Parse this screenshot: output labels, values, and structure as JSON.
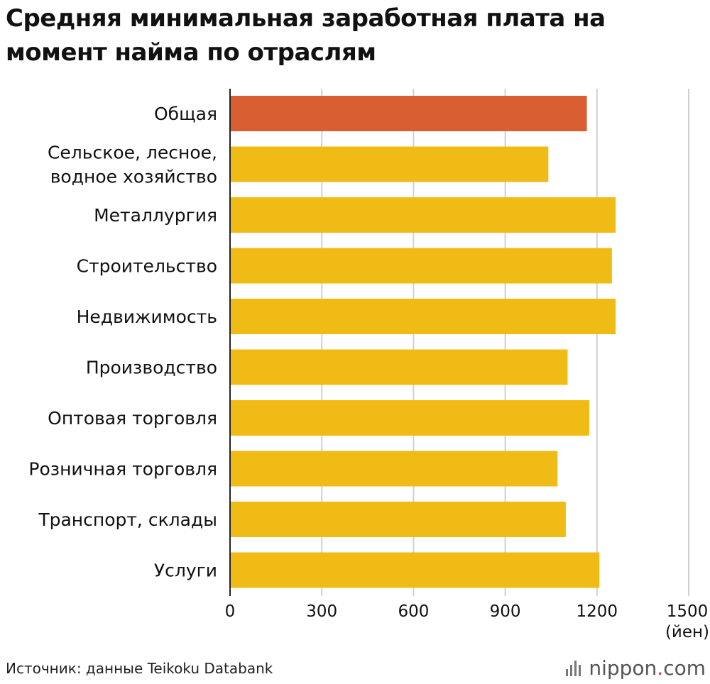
{
  "chart_data": {
    "type": "bar",
    "orientation": "horizontal",
    "title": "Средняя минимальная заработная плата на момент найма по отраслям",
    "categories": [
      "Общая",
      "Сельское, лесное, водное хозяйство",
      "Металлургия",
      "Строительство",
      "Недвижимость",
      "Производство",
      "Оптовая торговля",
      "Розничная торговля",
      "Транспорт, склады",
      "Услуги"
    ],
    "category_lines": [
      [
        "Общая"
      ],
      [
        "Сельское, лесное,",
        "водное хозяйство"
      ],
      [
        "Металлургия"
      ],
      [
        "Строительство"
      ],
      [
        "Недвижимость"
      ],
      [
        "Производство"
      ],
      [
        "Оптовая торговля"
      ],
      [
        "Розничная торговля"
      ],
      [
        "Транспорт, склады"
      ],
      [
        "Услуги"
      ]
    ],
    "values": [
      1167,
      1041,
      1261,
      1249,
      1261,
      1104,
      1175,
      1071,
      1098,
      1208
    ],
    "highlight_index": 0,
    "xlim": [
      0,
      1500
    ],
    "xticks": [
      0,
      300,
      600,
      900,
      1200,
      1500
    ],
    "xunit": "(йен)",
    "grid": true,
    "colors": {
      "highlight": "#d95f33",
      "bar": "#f1bb16",
      "grid": "#d0d0d0",
      "axis": "#222222"
    }
  },
  "source": "Источник: данные Teikoku Databank",
  "logo": {
    "name": "nippon",
    "dot": ".",
    "suffix": "com"
  }
}
